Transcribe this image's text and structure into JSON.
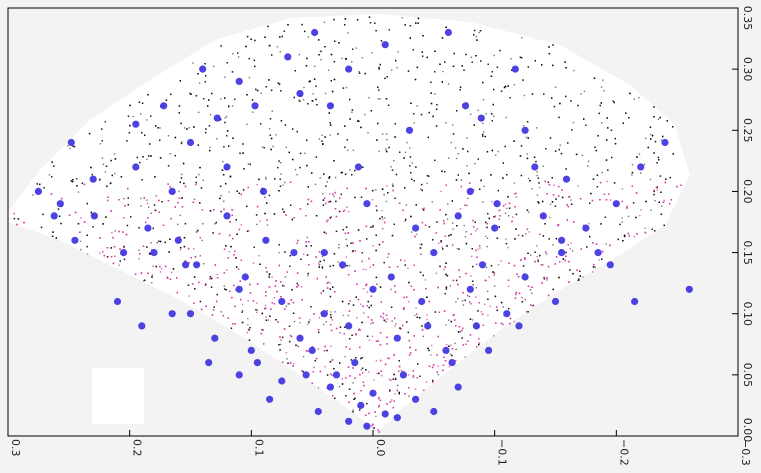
{
  "chart_data": {
    "type": "scatter",
    "title": "",
    "xlabel": "",
    "ylabel": "",
    "xlim": [
      0.3,
      -0.3
    ],
    "ylim": [
      0.0,
      0.35
    ],
    "x_ticks": [
      {
        "value": 0.3,
        "label": "0.3"
      },
      {
        "value": 0.2,
        "label": "0.2"
      },
      {
        "value": 0.1,
        "label": "0.1"
      },
      {
        "value": 0.0,
        "label": "0.0"
      },
      {
        "value": -0.1,
        "label": "−0.1"
      },
      {
        "value": -0.2,
        "label": "−0.2"
      },
      {
        "value": -0.3,
        "label": "−0.3"
      }
    ],
    "y_ticks": [
      {
        "value": 0.0,
        "label": "0.00"
      },
      {
        "value": 0.05,
        "label": "0.05"
      },
      {
        "value": 0.1,
        "label": "0.10"
      },
      {
        "value": 0.15,
        "label": "0.15"
      },
      {
        "value": 0.2,
        "label": "0.20"
      },
      {
        "value": 0.25,
        "label": "0.25"
      },
      {
        "value": 0.3,
        "label": "0.30"
      },
      {
        "value": 0.35,
        "label": "0.35"
      }
    ],
    "grid": false,
    "legend": "none",
    "colors": {
      "background_points": "#000000",
      "density_points": "#d63ca8",
      "highlight_points": "#3a2fe0",
      "plot_background": "#ffffff",
      "frame": "#000000"
    },
    "series": [
      {
        "marker": "large blue dots",
        "color": "#3a2fe0",
        "x": [
          0.275,
          0.257,
          0.229,
          0.185,
          0.154,
          0.165,
          0.15,
          0.11,
          0.07,
          0.048,
          0.02,
          -0.01,
          -0.062,
          -0.076,
          -0.089,
          -0.117,
          -0.125,
          -0.133,
          -0.159,
          -0.102,
          -0.08,
          -0.03,
          0.012,
          0.035,
          0.06,
          0.097,
          0.128,
          0.14,
          0.172,
          0.195,
          0.23,
          0.248,
          0.262,
          0.205,
          0.16,
          0.12,
          0.088,
          0.04,
          0.005,
          -0.035,
          -0.07,
          -0.1,
          -0.14,
          -0.175,
          -0.2,
          -0.22,
          -0.24,
          -0.195,
          -0.155,
          -0.125,
          -0.09,
          -0.05,
          -0.015,
          0.025,
          0.065,
          0.105,
          0.145,
          0.18,
          0.21,
          0.19,
          0.15,
          0.11,
          0.075,
          0.04,
          0.0,
          -0.04,
          -0.08,
          -0.11,
          -0.15,
          -0.12,
          -0.085,
          -0.06,
          -0.02,
          0.02,
          0.06,
          0.1,
          0.13,
          0.165,
          0.135,
          0.095,
          0.055,
          0.015,
          -0.025,
          -0.065,
          -0.095,
          -0.07,
          -0.035,
          0.0,
          0.035,
          0.075,
          0.11,
          0.085,
          0.045,
          0.01,
          -0.02,
          -0.05,
          0.02,
          0.005,
          -0.01,
          0.03,
          0.05,
          -0.045,
          0.09,
          0.12,
          -0.155,
          -0.185,
          -0.215,
          -0.26,
          0.195,
          0.245
        ],
        "y": [
          0.2,
          0.19,
          0.18,
          0.17,
          0.14,
          0.2,
          0.24,
          0.29,
          0.31,
          0.33,
          0.3,
          0.32,
          0.33,
          0.27,
          0.26,
          0.3,
          0.25,
          0.22,
          0.21,
          0.19,
          0.2,
          0.25,
          0.22,
          0.27,
          0.28,
          0.27,
          0.26,
          0.3,
          0.27,
          0.22,
          0.21,
          0.24,
          0.18,
          0.15,
          0.16,
          0.18,
          0.16,
          0.15,
          0.19,
          0.17,
          0.18,
          0.17,
          0.18,
          0.17,
          0.19,
          0.22,
          0.24,
          0.14,
          0.15,
          0.13,
          0.14,
          0.15,
          0.13,
          0.14,
          0.15,
          0.13,
          0.14,
          0.15,
          0.11,
          0.09,
          0.1,
          0.12,
          0.11,
          0.1,
          0.12,
          0.11,
          0.12,
          0.1,
          0.11,
          0.09,
          0.09,
          0.07,
          0.08,
          0.09,
          0.08,
          0.07,
          0.08,
          0.1,
          0.06,
          0.06,
          0.05,
          0.06,
          0.05,
          0.06,
          0.07,
          0.04,
          0.03,
          0.035,
          0.04,
          0.045,
          0.05,
          0.03,
          0.02,
          0.025,
          0.015,
          0.02,
          0.012,
          0.008,
          0.018,
          0.05,
          0.07,
          0.09,
          0.2,
          0.22,
          0.16,
          0.15,
          0.11,
          0.12,
          0.255,
          0.16
        ]
      }
    ]
  }
}
